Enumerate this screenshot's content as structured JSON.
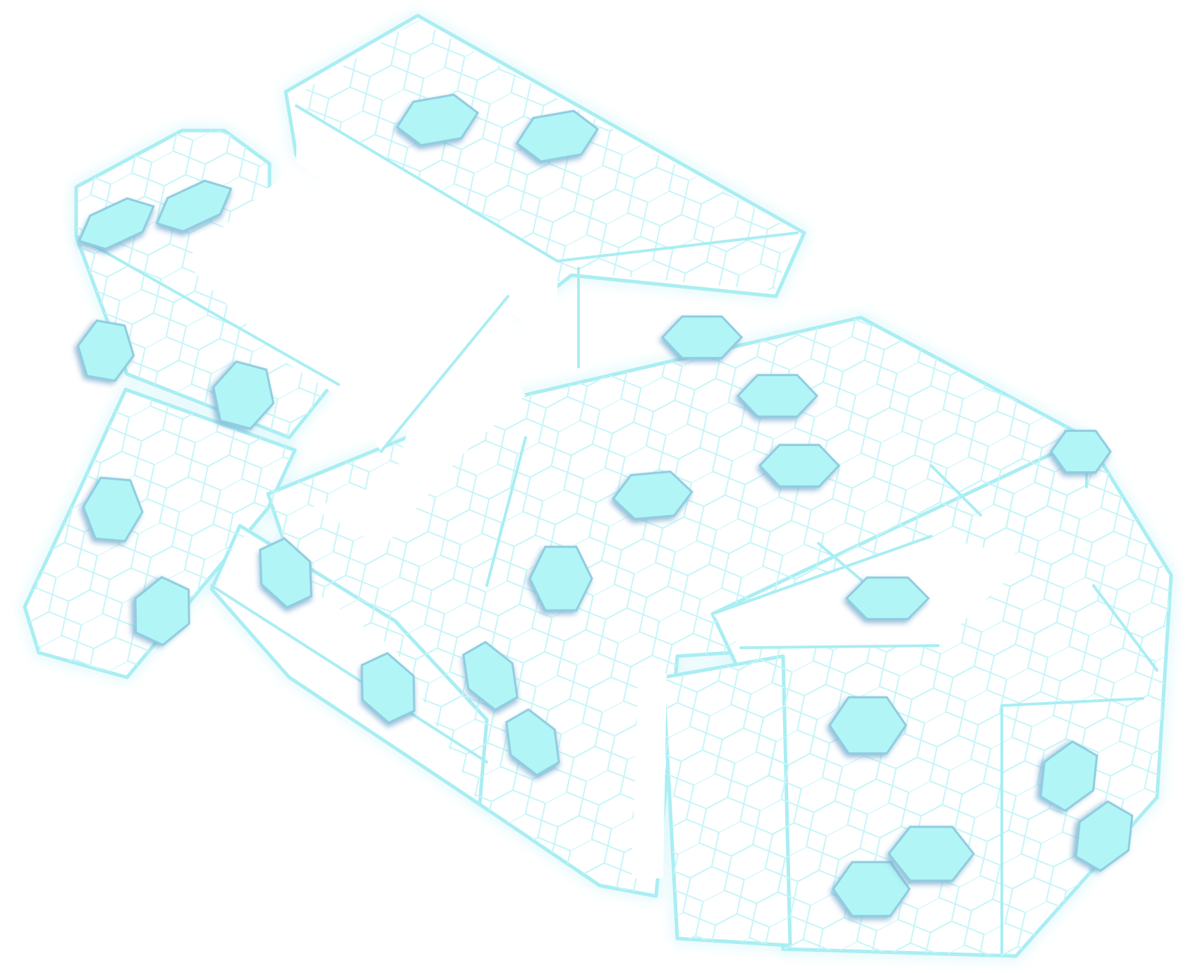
{
  "figure": {
    "subject": "holographic-hexagon-mesh-structure",
    "colors": {
      "outline": "#a9eef3",
      "mesh": "#c6f5f8",
      "glow": "#d9f9fb",
      "gem_fill": "#b1f5f6",
      "gem_edge": "#7fb8d6",
      "background": "#ffffff"
    }
  }
}
